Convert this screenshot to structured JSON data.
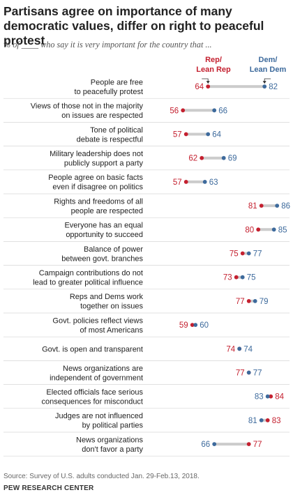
{
  "title": "Partisans agree on importance of many democratic values, differ on right to peaceful protest",
  "subtitle": "% of ____ who say it is very important for the country that ...",
  "legend": {
    "rep": "Rep/\nLean Rep",
    "dem": "Dem/\nLean Dem"
  },
  "colors": {
    "rep": "#c4202f",
    "dem": "#3d6a9c",
    "connector": "#cccccc",
    "divider": "#d6d6d6"
  },
  "chart_data": {
    "type": "scatter",
    "title": "Partisans agree on importance of many democratic values, differ on right to peaceful protest",
    "series": [
      {
        "name": "Rep/Lean Rep",
        "values": [
          64,
          56,
          57,
          62,
          57,
          81,
          80,
          75,
          73,
          77,
          59,
          74,
          77,
          84,
          83,
          77
        ]
      },
      {
        "name": "Dem/Lean Dem",
        "values": [
          82,
          66,
          64,
          69,
          63,
          86,
          85,
          77,
          75,
          79,
          60,
          74,
          77,
          83,
          81,
          66
        ]
      }
    ],
    "categories": [
      "People are free\nto peacefully protest",
      "Views of those not in the majority\non issues are respected",
      "Tone of political\ndebate is respectful",
      "Military leadership does not\npublicly support a party",
      "People agree on basic facts\neven if disagree on politics",
      "Rights and freedoms of all\npeople are respected",
      "Everyone has an equal\nopportunity to succeed",
      "Balance of power\nbetween govt. branches",
      "Campaign contributions do not\nlead to greater political influence",
      "Reps and Dems work\ntogether on  issues",
      "Govt. policies reflect views\nof most Americans",
      "Govt. is open and transparent",
      "News organizations are\nindependent of government",
      "Elected officials face serious\nconsequences for misconduct",
      "Judges are not influenced\nby political parties",
      "News organizations\ndon't favor a party"
    ]
  },
  "source": "Source: Survey of U.S. adults conducted Jan. 29-Feb.13, 2018.",
  "org": "PEW RESEARCH CENTER"
}
